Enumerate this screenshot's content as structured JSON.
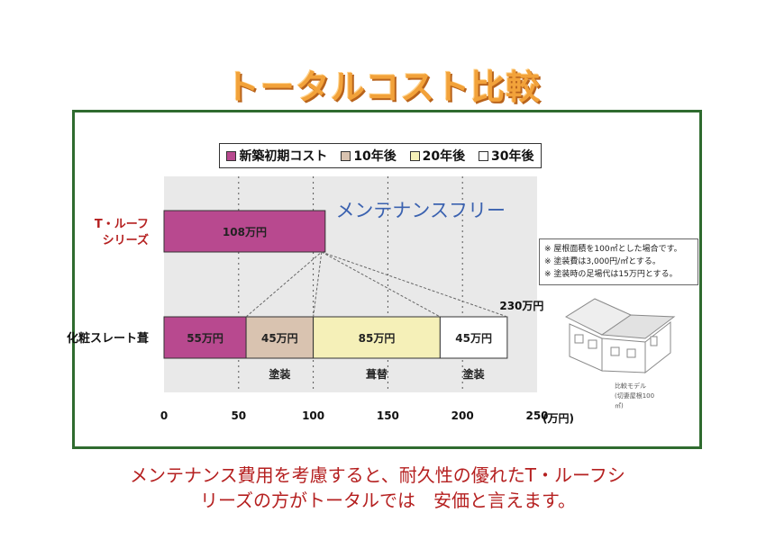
{
  "title": "トータルコスト比較",
  "legend": [
    {
      "label": "新築初期コスト",
      "color": "#b8498f"
    },
    {
      "label": "10年後",
      "color": "#d9c3b0"
    },
    {
      "label": "20年後",
      "color": "#f5f0b8"
    },
    {
      "label": "30年後",
      "color": "#ffffff"
    }
  ],
  "chart_data": {
    "type": "bar",
    "orientation": "horizontal",
    "stacked": true,
    "categories": [
      "T・ルーフシリーズ",
      "化粧スレート葺"
    ],
    "category_label_lines": [
      [
        "T・ルーフ",
        "シリーズ"
      ],
      [
        "化粧スレート葺"
      ]
    ],
    "series": [
      {
        "name": "新築初期コスト",
        "values": [
          108,
          55
        ],
        "labels": [
          "108万円",
          "55万円"
        ],
        "color": "#b8498f"
      },
      {
        "name": "10年後",
        "values": [
          0,
          45
        ],
        "labels": [
          "",
          "45万円"
        ],
        "color": "#d9c3b0"
      },
      {
        "name": "20年後",
        "values": [
          0,
          85
        ],
        "labels": [
          "",
          "85万円"
        ],
        "color": "#f5f0b8"
      },
      {
        "name": "30年後",
        "values": [
          0,
          45
        ],
        "labels": [
          "",
          "45万円"
        ],
        "color": "#ffffff"
      }
    ],
    "segment_notes": [
      "",
      "塗装",
      "葺替",
      "塗装"
    ],
    "xlim": [
      0,
      250
    ],
    "xticks": [
      0,
      50,
      100,
      150,
      200,
      250
    ],
    "xunit": "(万円)",
    "total_label": "230万円",
    "annotation": "メンテナンスフリー",
    "grid": "vertical dashed"
  },
  "notes": [
    "※ 屋根面積を100㎡とした場合です。",
    "※ 塗装費は3,000円/㎡とする。",
    "※ 塗装時の足場代は15万円とする。"
  ],
  "model_caption": [
    "比較モデル",
    "(切妻屋根100",
    "㎡)"
  ],
  "conclusion": [
    "メンテナンス費用を考慮すると、耐久性の優れたT・ルーフシ",
    "リーズの方がトータルでは　安価と言えます。"
  ],
  "colors": {
    "frame": "#2f6b2f",
    "title": "#f2a23a",
    "annotation": "#3b62b0",
    "conclusion": "#b52020"
  }
}
